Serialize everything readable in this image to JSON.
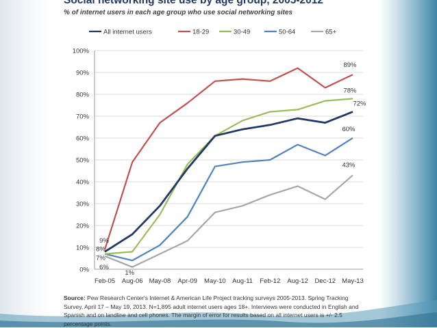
{
  "header": {
    "title": "Social networking site use by age group, 2005-2012",
    "subtitle": "% of internet users in each age group who use social networking sites"
  },
  "source": {
    "label": "Source:",
    "text": "Pew Research Center's Internet & American Life Project tracking surveys 2005-2013. Spring Tracking Survey, April 17 – May 19, 2013. N=1,895 adult internet users ages 18+. Interviews were conducted in English and Spanish and on landline and cell phones.  The margin of error for results based on all internet users is +/- 2.5 percentage points."
  },
  "colors": {
    "title": "#1f3864",
    "all": "#1f3864",
    "age18_29": "#c0504d",
    "age30_49": "#9bbb59",
    "age50_64": "#4f81bd",
    "age65": "#a6a6a6",
    "side_accent": "#3d85a7"
  },
  "chart_data": {
    "type": "line",
    "title": "Social networking site use by age group, 2005-2012",
    "subtitle": "% of internet users in each age group who use social networking sites",
    "ylim": [
      0,
      100
    ],
    "y_ticks": [
      "0%",
      "10%",
      "20%",
      "30%",
      "40%",
      "50%",
      "60%",
      "70%",
      "80%",
      "90%",
      "100%"
    ],
    "categories": [
      "Feb-05",
      "Aug-06",
      "May-08",
      "Apr-09",
      "May-10",
      "Aug-11",
      "Feb-12",
      "Aug-12",
      "Dec-12",
      "May-13"
    ],
    "grid": true,
    "legend_position": "top",
    "series": [
      {
        "name": "All internet users",
        "color": "#1f3864",
        "values": [
          8,
          16,
          29,
          46,
          61,
          64,
          66,
          69,
          67,
          72
        ]
      },
      {
        "name": "18-29",
        "color": "#c0504d",
        "values": [
          9,
          49,
          67,
          76,
          86,
          87,
          86,
          92,
          83,
          89
        ]
      },
      {
        "name": "30-49",
        "color": "#9bbb59",
        "values": [
          7,
          8,
          25,
          48,
          61,
          68,
          72,
          73,
          77,
          78
        ]
      },
      {
        "name": "50-64",
        "color": "#4f81bd",
        "values": [
          7,
          4,
          11,
          24,
          47,
          49,
          50,
          57,
          52,
          60
        ]
      },
      {
        "name": "65+",
        "color": "#a6a6a6",
        "values": [
          6,
          1,
          7,
          13,
          26,
          29,
          34,
          38,
          32,
          43
        ]
      }
    ],
    "data_labels": [
      {
        "series": 1,
        "index": 0,
        "text": "9%"
      },
      {
        "series": 0,
        "index": 0,
        "text": "8%"
      },
      {
        "series": 2,
        "index": 0,
        "text": "7%"
      },
      {
        "series": 4,
        "index": 0,
        "text": "6%"
      },
      {
        "series": 4,
        "index": 1,
        "text": "1%"
      },
      {
        "series": 1,
        "index": 9,
        "text": "89%"
      },
      {
        "series": 2,
        "index": 9,
        "text": "78%"
      },
      {
        "series": 0,
        "index": 9,
        "text": "72%"
      },
      {
        "series": 3,
        "index": 9,
        "text": "60%"
      },
      {
        "series": 4,
        "index": 9,
        "text": "43%"
      }
    ]
  }
}
